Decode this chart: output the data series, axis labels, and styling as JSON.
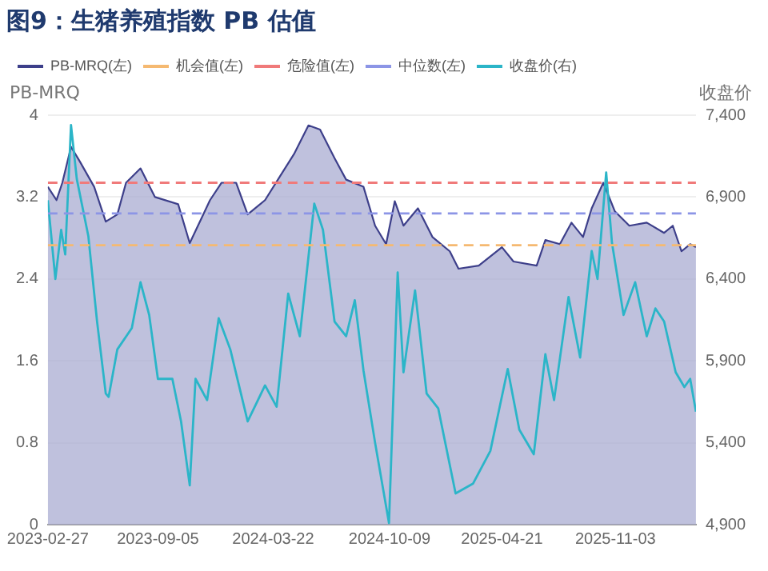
{
  "chart_data": {
    "type": "area",
    "title": "图9：生猪养殖指数 PB 估值",
    "ylabel": "PB-MRQ",
    "y2label": "收盘价",
    "xlim": [
      "2023-02-27",
      "2026-03-22"
    ],
    "xticks": [
      "2023-02-27",
      "2023-09-05",
      "2024-03-22",
      "2024-10-09",
      "2025-04-21",
      "2025-11-03"
    ],
    "ylim": [
      0,
      4
    ],
    "yticks": [
      0,
      0.8,
      1.6,
      2.4,
      3.2,
      4
    ],
    "y2lim": [
      4900,
      7400
    ],
    "y2ticks": [
      {
        "value": 4900,
        "label": "4,900"
      },
      {
        "value": 5400,
        "label": "5,400"
      },
      {
        "value": 5900,
        "label": "5,900"
      },
      {
        "value": 6400,
        "label": "6,400"
      },
      {
        "value": 6900,
        "label": "6,900"
      },
      {
        "value": 7400,
        "label": "7,400"
      }
    ],
    "grid": "y",
    "legend": "top left",
    "marker": "none",
    "series": [
      {
        "name": "PB-MRQ(左)",
        "color": "#3d3f8a",
        "x": [
          "2023-02-27",
          "2023-03-14",
          "2023-03-24",
          "2023-04-08",
          "2023-04-23",
          "2023-05-18",
          "2023-06-07",
          "2023-06-27",
          "2023-07-12",
          "2023-08-06",
          "2023-08-31",
          "2023-10-10",
          "2023-10-30",
          "2023-12-04",
          "2023-12-24",
          "2024-01-18",
          "2024-02-07",
          "2024-03-08",
          "2024-04-07",
          "2024-04-27",
          "2024-05-22",
          "2024-06-11",
          "2024-07-06",
          "2024-07-26",
          "2024-08-25",
          "2024-09-14",
          "2024-10-03",
          "2024-10-18",
          "2024-11-02",
          "2024-11-27",
          "2024-12-22",
          "2025-01-21",
          "2025-02-05",
          "2025-03-12",
          "2025-04-21",
          "2025-05-11",
          "2025-06-20",
          "2025-07-05",
          "2025-07-30",
          "2025-08-19",
          "2025-09-08",
          "2025-09-23",
          "2025-10-13",
          "2025-11-02",
          "2025-11-27",
          "2025-12-27",
          "2026-01-26",
          "2026-02-10",
          "2026-02-25",
          "2026-03-12",
          "2026-03-22"
        ],
        "values": [
          3.3,
          3.17,
          3.34,
          3.69,
          3.55,
          3.3,
          2.96,
          3.03,
          3.34,
          3.48,
          3.2,
          3.13,
          2.75,
          3.17,
          3.34,
          3.34,
          3.03,
          3.17,
          3.44,
          3.62,
          3.9,
          3.86,
          3.58,
          3.37,
          3.3,
          2.92,
          2.74,
          3.16,
          2.92,
          3.09,
          2.81,
          2.67,
          2.5,
          2.53,
          2.71,
          2.57,
          2.53,
          2.78,
          2.74,
          2.95,
          2.81,
          3.09,
          3.34,
          3.06,
          2.92,
          2.95,
          2.85,
          2.92,
          2.67,
          2.74,
          2.71
        ]
      },
      {
        "name": "收盘价(右)",
        "type": "line",
        "axis": "y2",
        "color": "#2bb5c8",
        "x": [
          "2023-02-27",
          "2023-03-12",
          "2023-03-22",
          "2023-03-29",
          "2023-04-08",
          "2023-04-18",
          "2023-05-08",
          "2023-05-23",
          "2023-06-07",
          "2023-06-12",
          "2023-06-27",
          "2023-07-22",
          "2023-08-06",
          "2023-08-21",
          "2023-09-05",
          "2023-09-30",
          "2023-10-15",
          "2023-10-30",
          "2023-11-09",
          "2023-11-29",
          "2023-12-19",
          "2024-01-08",
          "2024-02-07",
          "2024-03-08",
          "2024-03-28",
          "2024-04-17",
          "2024-05-07",
          "2024-06-01",
          "2024-06-16",
          "2024-07-06",
          "2024-07-26",
          "2024-08-10",
          "2024-08-25",
          "2024-09-14",
          "2024-10-08",
          "2024-10-23",
          "2024-11-02",
          "2024-11-22",
          "2024-12-12",
          "2025-01-01",
          "2025-01-31",
          "2025-03-02",
          "2025-04-01",
          "2025-05-01",
          "2025-05-21",
          "2025-06-15",
          "2025-07-05",
          "2025-07-20",
          "2025-08-14",
          "2025-09-03",
          "2025-09-23",
          "2025-10-03",
          "2025-10-18",
          "2025-10-28",
          "2025-11-17",
          "2025-12-07",
          "2025-12-27",
          "2026-01-11",
          "2026-01-26",
          "2026-02-15",
          "2026-03-02",
          "2026-03-12",
          "2026-03-22"
        ],
        "values": [
          6880,
          6400,
          6700,
          6550,
          7340,
          7010,
          6660,
          6140,
          5700,
          5680,
          5970,
          6100,
          6380,
          6180,
          5790,
          5790,
          5530,
          5140,
          5790,
          5660,
          6160,
          5970,
          5530,
          5750,
          5620,
          6310,
          6050,
          6860,
          6700,
          6140,
          6050,
          6270,
          5840,
          5400,
          4910,
          6440,
          5830,
          6330,
          5700,
          5610,
          5090,
          5150,
          5350,
          5850,
          5480,
          5330,
          5940,
          5660,
          6290,
          5920,
          6570,
          6400,
          7050,
          6620,
          6180,
          6380,
          6050,
          6220,
          6140,
          5830,
          5740,
          5790,
          5590
        ]
      }
    ],
    "ref_lines": [
      {
        "axis": "y",
        "value": 2.73,
        "label": "机会值(左)",
        "color": "#f5b971",
        "line_style": "dashed"
      },
      {
        "axis": "y",
        "value": 3.34,
        "label": "危险值(左)",
        "color": "#f07a7a",
        "line_style": "dashed"
      },
      {
        "axis": "y",
        "value": 3.04,
        "label": "中位数(左)",
        "color": "#8c95e6",
        "line_style": "dashed"
      }
    ]
  }
}
